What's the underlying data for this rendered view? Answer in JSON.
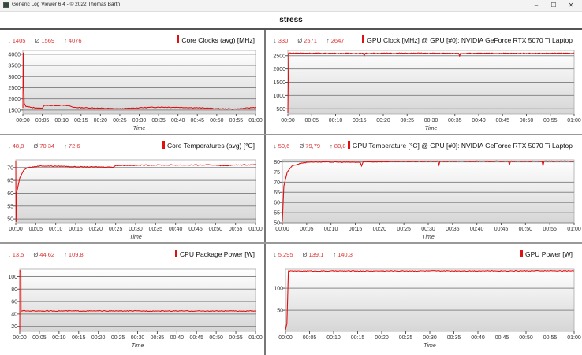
{
  "window": {
    "title": "Generic Log Viewer 6.4 - © 2022 Thomas Barth",
    "minimize": "–",
    "maximize": "☐",
    "close": "✕"
  },
  "document": {
    "title": "stress"
  },
  "colors": {
    "series": "#e01010",
    "stat_values": "#d33333",
    "grid": "#888888"
  },
  "stat_symbols": {
    "min": "↓",
    "avg": "Ø",
    "max": "↑"
  },
  "chart_data": [
    {
      "type": "line",
      "title": "Core Clocks (avg) [MHz]",
      "stats": {
        "min": "1405",
        "avg": "1569",
        "max": "4076"
      },
      "xlabel": "Time",
      "xticks": [
        "00:00",
        "00:05",
        "00:10",
        "00:15",
        "00:20",
        "00:25",
        "00:30",
        "00:35",
        "00:40",
        "00:45",
        "00:50",
        "00:55",
        "01:00"
      ],
      "xlim_minutes": [
        0,
        60
      ],
      "ylim": [
        1320,
        4170
      ],
      "yticks": [
        1500,
        2000,
        2500,
        3000,
        3500,
        4000
      ],
      "grid": true,
      "points": [
        [
          0,
          1600
        ],
        [
          0.1,
          4076
        ],
        [
          0.35,
          1800
        ],
        [
          0.8,
          1660
        ],
        [
          2,
          1620
        ],
        [
          4,
          1590
        ],
        [
          5,
          1580
        ],
        [
          5.5,
          1700
        ],
        [
          10,
          1710
        ],
        [
          12,
          1690
        ],
        [
          13,
          1620
        ],
        [
          20,
          1580
        ],
        [
          25,
          1555
        ],
        [
          30,
          1600
        ],
        [
          35,
          1630
        ],
        [
          40,
          1620
        ],
        [
          45,
          1600
        ],
        [
          50,
          1560
        ],
        [
          55,
          1545
        ],
        [
          60,
          1620
        ]
      ]
    },
    {
      "type": "line",
      "title": "GPU Clock [MHz] @ GPU [#0]: NVIDIA GeForce RTX 5070 Ti Laptop",
      "stats": {
        "min": "330",
        "avg": "2571",
        "max": "2647"
      },
      "xlabel": "Time",
      "xticks": [
        "00:00",
        "00:05",
        "00:10",
        "00:15",
        "00:20",
        "00:25",
        "00:30",
        "00:35",
        "00:40",
        "00:45",
        "00:50",
        "00:55",
        "01:00"
      ],
      "xlim_minutes": [
        0,
        60
      ],
      "ylim": [
        300,
        2700
      ],
      "yticks": [
        500,
        1000,
        1500,
        2000,
        2500
      ],
      "grid": true,
      "points": [
        [
          0,
          330
        ],
        [
          0.15,
          2600
        ],
        [
          10,
          2590
        ],
        [
          15.8,
          2590
        ],
        [
          16,
          2500
        ],
        [
          16.2,
          2590
        ],
        [
          25,
          2595
        ],
        [
          35.8,
          2590
        ],
        [
          36,
          2490
        ],
        [
          36.2,
          2590
        ],
        [
          50,
          2590
        ],
        [
          60,
          2595
        ]
      ]
    },
    {
      "type": "line",
      "title": "Core Temperatures (avg) [°C]",
      "stats": {
        "min": "48,8",
        "avg": "70,34",
        "max": "72,6"
      },
      "xlabel": "Time",
      "xticks": [
        "00:00",
        "00:05",
        "00:10",
        "00:15",
        "00:20",
        "00:25",
        "00:30",
        "00:35",
        "00:40",
        "00:45",
        "00:50",
        "00:55",
        "01:00"
      ],
      "xlim_minutes": [
        0,
        60
      ],
      "ylim": [
        48.5,
        73
      ],
      "yticks": [
        50,
        55,
        60,
        65,
        70
      ],
      "grid": true,
      "points": [
        [
          0,
          72.6
        ],
        [
          0.05,
          48.8
        ],
        [
          0.2,
          60
        ],
        [
          1,
          66
        ],
        [
          2,
          69
        ],
        [
          3,
          70
        ],
        [
          6,
          70.6
        ],
        [
          12,
          70.5
        ],
        [
          15,
          70.3
        ],
        [
          24.5,
          70.2
        ],
        [
          25,
          70.8
        ],
        [
          35,
          71
        ],
        [
          50,
          71
        ],
        [
          52,
          70.7
        ],
        [
          55,
          71
        ],
        [
          60,
          71.1
        ]
      ]
    },
    {
      "type": "line",
      "title": "GPU Temperature [°C] @ GPU [#0]: NVIDIA GeForce RTX 5070 Ti Laptop",
      "stats": {
        "min": "50,6",
        "avg": "79,79",
        "max": "80,8"
      },
      "xlabel": "Time",
      "xticks": [
        "00:00",
        "00:05",
        "00:10",
        "00:15",
        "00:20",
        "00:25",
        "00:30",
        "00:35",
        "00:40",
        "00:45",
        "00:50",
        "00:55",
        "01:00"
      ],
      "xlim_minutes": [
        0,
        60
      ],
      "ylim": [
        50,
        81
      ],
      "yticks": [
        50,
        55,
        60,
        65,
        70,
        75,
        80
      ],
      "grid": true,
      "points": [
        [
          0,
          50.6
        ],
        [
          0.3,
          68
        ],
        [
          1,
          75
        ],
        [
          2,
          78
        ],
        [
          4,
          79.5
        ],
        [
          6,
          80
        ],
        [
          16,
          79.8
        ],
        [
          16.3,
          78
        ],
        [
          16.6,
          80
        ],
        [
          25,
          80.2
        ],
        [
          32,
          80.3
        ],
        [
          32.2,
          78.5
        ],
        [
          32.4,
          80.3
        ],
        [
          46.5,
          80.3
        ],
        [
          46.7,
          78.5
        ],
        [
          46.9,
          80.3
        ],
        [
          53.4,
          80.3
        ],
        [
          53.6,
          78
        ],
        [
          53.8,
          80.3
        ],
        [
          60,
          80.4
        ]
      ]
    },
    {
      "type": "line",
      "title": "CPU Package Power [W]",
      "stats": {
        "min": "13,5",
        "avg": "44,62",
        "max": "109,8"
      },
      "xlabel": "Time",
      "xticks": [
        "00:00",
        "00:05",
        "00:10",
        "00:15",
        "00:20",
        "00:25",
        "00:30",
        "00:35",
        "00:40",
        "00:45",
        "00:50",
        "00:55",
        "01:00"
      ],
      "xlim_minutes": [
        0,
        60
      ],
      "ylim": [
        12,
        112
      ],
      "yticks": [
        20,
        40,
        60,
        80,
        100
      ],
      "grid": true,
      "points": [
        [
          0,
          13.5
        ],
        [
          0.05,
          109.8
        ],
        [
          0.3,
          109
        ],
        [
          0.35,
          45
        ],
        [
          60,
          44.8
        ]
      ]
    },
    {
      "type": "line",
      "title": "GPU Power [W]",
      "stats": {
        "min": "5,295",
        "avg": "139,1",
        "max": "140,3"
      },
      "xlabel": "Time",
      "xticks": [
        "00:00",
        "00:05",
        "00:10",
        "00:15",
        "00:20",
        "00:25",
        "00:30",
        "00:35",
        "00:40",
        "00:45",
        "00:50",
        "00:55",
        "01:00"
      ],
      "xlim_minutes": [
        0,
        60
      ],
      "ylim": [
        2,
        143
      ],
      "yticks": [
        50,
        100
      ],
      "grid": true,
      "points": [
        [
          0,
          5.3
        ],
        [
          0.3,
          20
        ],
        [
          0.6,
          139
        ],
        [
          30,
          139.3
        ],
        [
          60,
          139.5
        ]
      ]
    }
  ]
}
